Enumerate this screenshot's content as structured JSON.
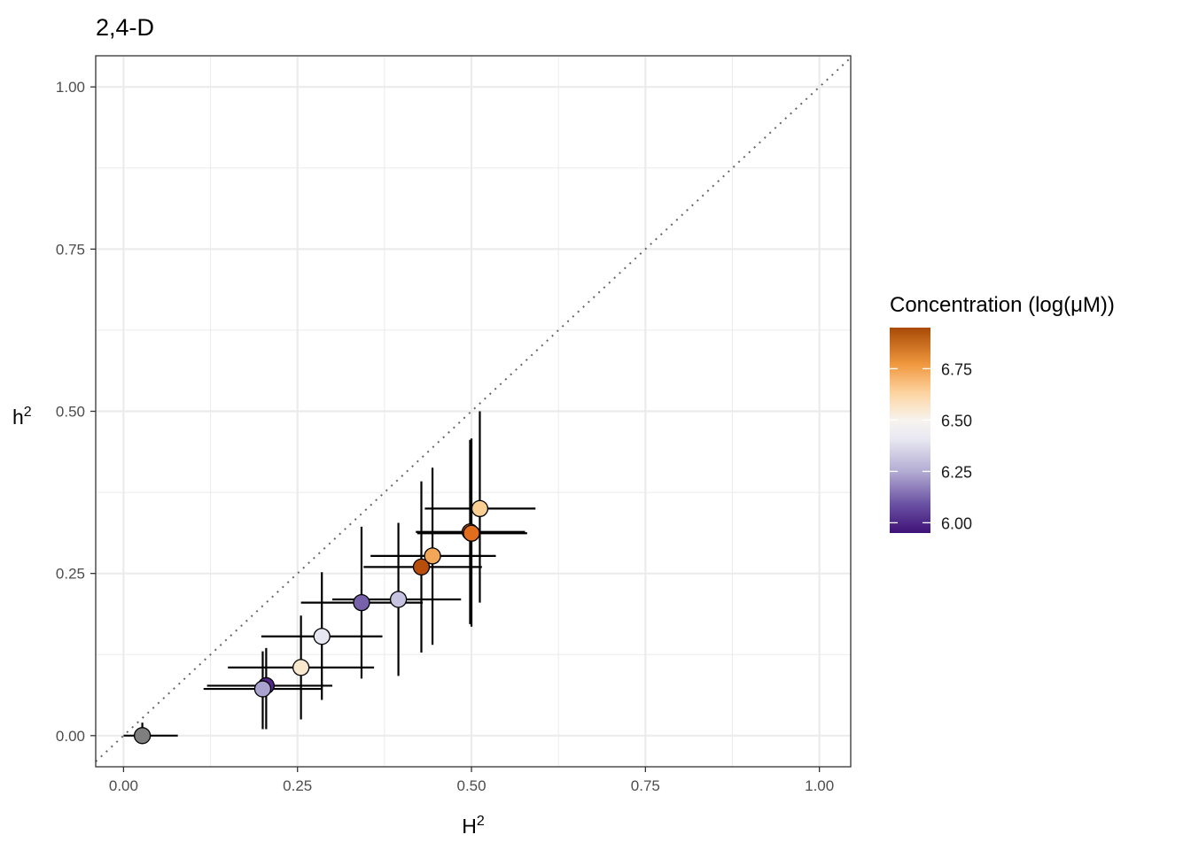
{
  "chart_data": {
    "type": "scatter",
    "title": "2,4-D",
    "xlabel": "H",
    "xlabel_superscript": "2",
    "ylabel": "h",
    "ylabel_superscript": "2",
    "xlim": [
      -0.04,
      1.045
    ],
    "ylim": [
      -0.048,
      1.048
    ],
    "x_ticks": [
      "0.00",
      "0.25",
      "0.50",
      "0.75",
      "1.00"
    ],
    "y_ticks": [
      "0.00",
      "0.25",
      "0.50",
      "0.75",
      "1.00"
    ],
    "grid": true,
    "reference_line": "y = x (dotted)",
    "points": [
      {
        "x": 0.027,
        "y": 0.0,
        "xerr": [
          0.0,
          0.078
        ],
        "yerr": [
          0.0,
          0.02
        ],
        "conc": null
      },
      {
        "x": 0.205,
        "y": 0.077,
        "xerr": [
          0.12,
          0.3
        ],
        "yerr": [
          0.01,
          0.135
        ],
        "conc": 5.97
      },
      {
        "x": 0.2,
        "y": 0.072,
        "xerr": [
          0.115,
          0.285
        ],
        "yerr": [
          0.01,
          0.13
        ],
        "conc": 6.15
      },
      {
        "x": 0.255,
        "y": 0.105,
        "xerr": [
          0.15,
          0.36
        ],
        "yerr": [
          0.025,
          0.185
        ],
        "conc": 6.45
      },
      {
        "x": 0.285,
        "y": 0.153,
        "xerr": [
          0.198,
          0.372
        ],
        "yerr": [
          0.055,
          0.252
        ],
        "conc": 6.3
      },
      {
        "x": 0.342,
        "y": 0.205,
        "xerr": [
          0.255,
          0.43
        ],
        "yerr": [
          0.088,
          0.322
        ],
        "conc": 6.05
      },
      {
        "x": 0.395,
        "y": 0.21,
        "xerr": [
          0.3,
          0.485
        ],
        "yerr": [
          0.092,
          0.328
        ],
        "conc": 6.2
      },
      {
        "x": 0.428,
        "y": 0.26,
        "xerr": [
          0.345,
          0.515
        ],
        "yerr": [
          0.128,
          0.392
        ],
        "conc": 6.93
      },
      {
        "x": 0.444,
        "y": 0.277,
        "xerr": [
          0.355,
          0.535
        ],
        "yerr": [
          0.14,
          0.413
        ],
        "conc": 6.65
      },
      {
        "x": 0.498,
        "y": 0.314,
        "xerr": [
          0.42,
          0.577
        ],
        "yerr": [
          0.172,
          0.456
        ],
        "conc": 6.85
      },
      {
        "x": 0.5,
        "y": 0.312,
        "xerr": [
          0.422,
          0.58
        ],
        "yerr": [
          0.168,
          0.458
        ],
        "conc": 6.8
      },
      {
        "x": 0.512,
        "y": 0.35,
        "xerr": [
          0.433,
          0.592
        ],
        "yerr": [
          0.205,
          0.5
        ],
        "conc": 6.55
      }
    ],
    "legend": {
      "title": "Concentration (log(μM))",
      "range": [
        5.95,
        6.95
      ],
      "ticks": [
        {
          "value": 6.0,
          "label": "6.00"
        },
        {
          "value": 6.25,
          "label": "6.25"
        },
        {
          "value": 6.5,
          "label": "6.50"
        },
        {
          "value": 6.75,
          "label": "6.75"
        }
      ],
      "placement": "right"
    },
    "colors": {
      "scale": [
        "#4b1a82",
        "#8b7fbd",
        "#d8daeb",
        "#f7f7f7",
        "#fdd9a5",
        "#f1a250",
        "#e06a1a",
        "#b04a0a"
      ],
      "na": "#7f7f7f",
      "grid": "#ebebeb",
      "panel_border": "#333333",
      "reference": "#666666"
    }
  }
}
